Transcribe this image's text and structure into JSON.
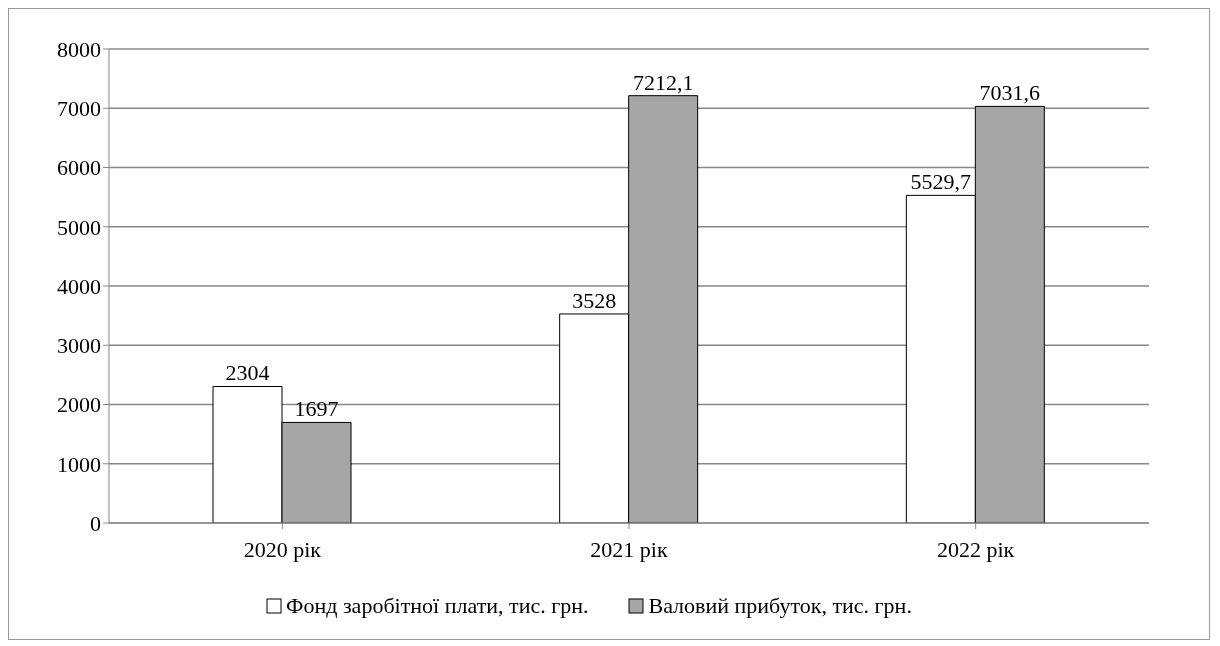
{
  "chart_data": {
    "type": "bar",
    "categories": [
      "2020 рік",
      "2021 рік",
      "2022 рік"
    ],
    "series": [
      {
        "name": "Фонд заробітної плати, тис. грн.",
        "color": "#ffffff",
        "values": [
          2304,
          3528,
          5529.7
        ],
        "value_labels": [
          "2304",
          "3528",
          "5529,7"
        ]
      },
      {
        "name": "Валовий прибуток, тис. грн.",
        "color": "#a6a6a6",
        "values": [
          1697,
          7212.1,
          7031.6
        ],
        "value_labels": [
          "1697",
          "7212,1",
          "7031,6"
        ]
      }
    ],
    "ylim": [
      0,
      8000
    ],
    "yticks": [
      0,
      1000,
      2000,
      3000,
      4000,
      5000,
      6000,
      7000,
      8000
    ],
    "grid": "y",
    "legend": "bottom"
  }
}
